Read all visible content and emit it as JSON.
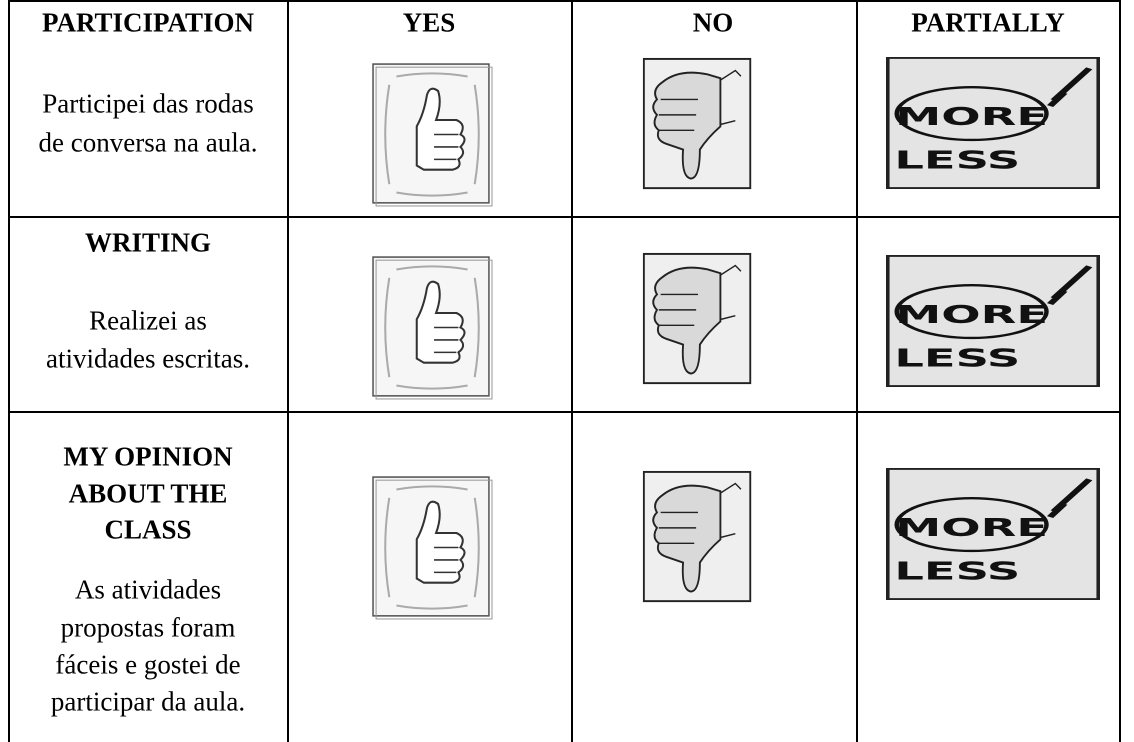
{
  "table": {
    "columns": [
      "PARTICIPATION",
      "YES",
      "NO",
      "PARTIALLY"
    ],
    "rows": [
      {
        "title": [
          "PARTICIPATION"
        ],
        "text": [
          "Participei das rodas",
          "de conversa na aula."
        ]
      },
      {
        "title": [
          "WRITING"
        ],
        "text": [
          "Realizei as",
          "atividades escritas."
        ]
      },
      {
        "title": [
          "MY OPINION",
          "ABOUT THE",
          "CLASS"
        ],
        "text": [
          "As atividades",
          "propostas foram",
          "fáceis e gostei de",
          "participar da aula."
        ]
      }
    ],
    "icon_text": {
      "more": "MORE",
      "less": "LESS"
    }
  }
}
